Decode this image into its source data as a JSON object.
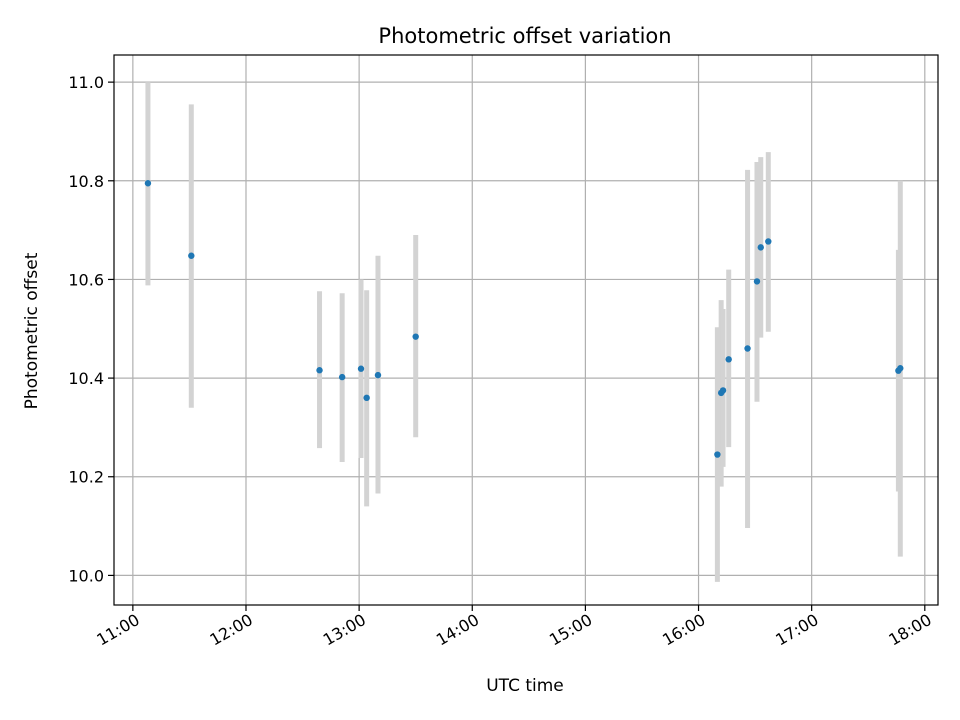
{
  "chart_data": {
    "type": "scatter",
    "title": "Photometric offset variation",
    "xlabel": "UTC time",
    "ylabel": "Photometric offset",
    "xlim": [
      "10:50",
      "18:07"
    ],
    "ylim": [
      9.94,
      11.055
    ],
    "grid": true,
    "x_ticks": [
      "11:00",
      "12:00",
      "13:00",
      "14:00",
      "15:00",
      "16:00",
      "17:00",
      "18:00"
    ],
    "y_ticks": [
      "10.0",
      "10.2",
      "10.4",
      "10.6",
      "10.8",
      "11.0"
    ],
    "point_color": "#1f77b4",
    "errorbar_color": "#d3d3d3",
    "points": [
      {
        "time": "11:08",
        "value": 10.795,
        "low": 10.588,
        "high": 11.0
      },
      {
        "time": "11:31",
        "value": 10.648,
        "low": 10.34,
        "high": 10.955
      },
      {
        "time": "12:39",
        "value": 10.416,
        "low": 10.258,
        "high": 10.576
      },
      {
        "time": "12:51",
        "value": 10.402,
        "low": 10.23,
        "high": 10.572
      },
      {
        "time": "13:01",
        "value": 10.419,
        "low": 10.238,
        "high": 10.6
      },
      {
        "time": "13:04",
        "value": 10.36,
        "low": 10.14,
        "high": 10.578
      },
      {
        "time": "13:10",
        "value": 10.406,
        "low": 10.166,
        "high": 10.648
      },
      {
        "time": "13:30",
        "value": 10.484,
        "low": 10.28,
        "high": 10.69
      },
      {
        "time": "16:10",
        "value": 10.245,
        "low": 9.987,
        "high": 10.503
      },
      {
        "time": "16:12",
        "value": 10.37,
        "low": 10.18,
        "high": 10.558
      },
      {
        "time": "16:13",
        "value": 10.375,
        "low": 10.22,
        "high": 10.54
      },
      {
        "time": "16:16",
        "value": 10.438,
        "low": 10.26,
        "high": 10.62
      },
      {
        "time": "16:26",
        "value": 10.46,
        "low": 10.096,
        "high": 10.822
      },
      {
        "time": "16:31",
        "value": 10.596,
        "low": 10.352,
        "high": 10.838
      },
      {
        "time": "16:33",
        "value": 10.665,
        "low": 10.482,
        "high": 10.848
      },
      {
        "time": "16:37",
        "value": 10.677,
        "low": 10.494,
        "high": 10.858
      },
      {
        "time": "17:46",
        "value": 10.415,
        "low": 10.17,
        "high": 10.66
      },
      {
        "time": "17:47",
        "value": 10.42,
        "low": 10.038,
        "high": 10.8
      }
    ]
  }
}
